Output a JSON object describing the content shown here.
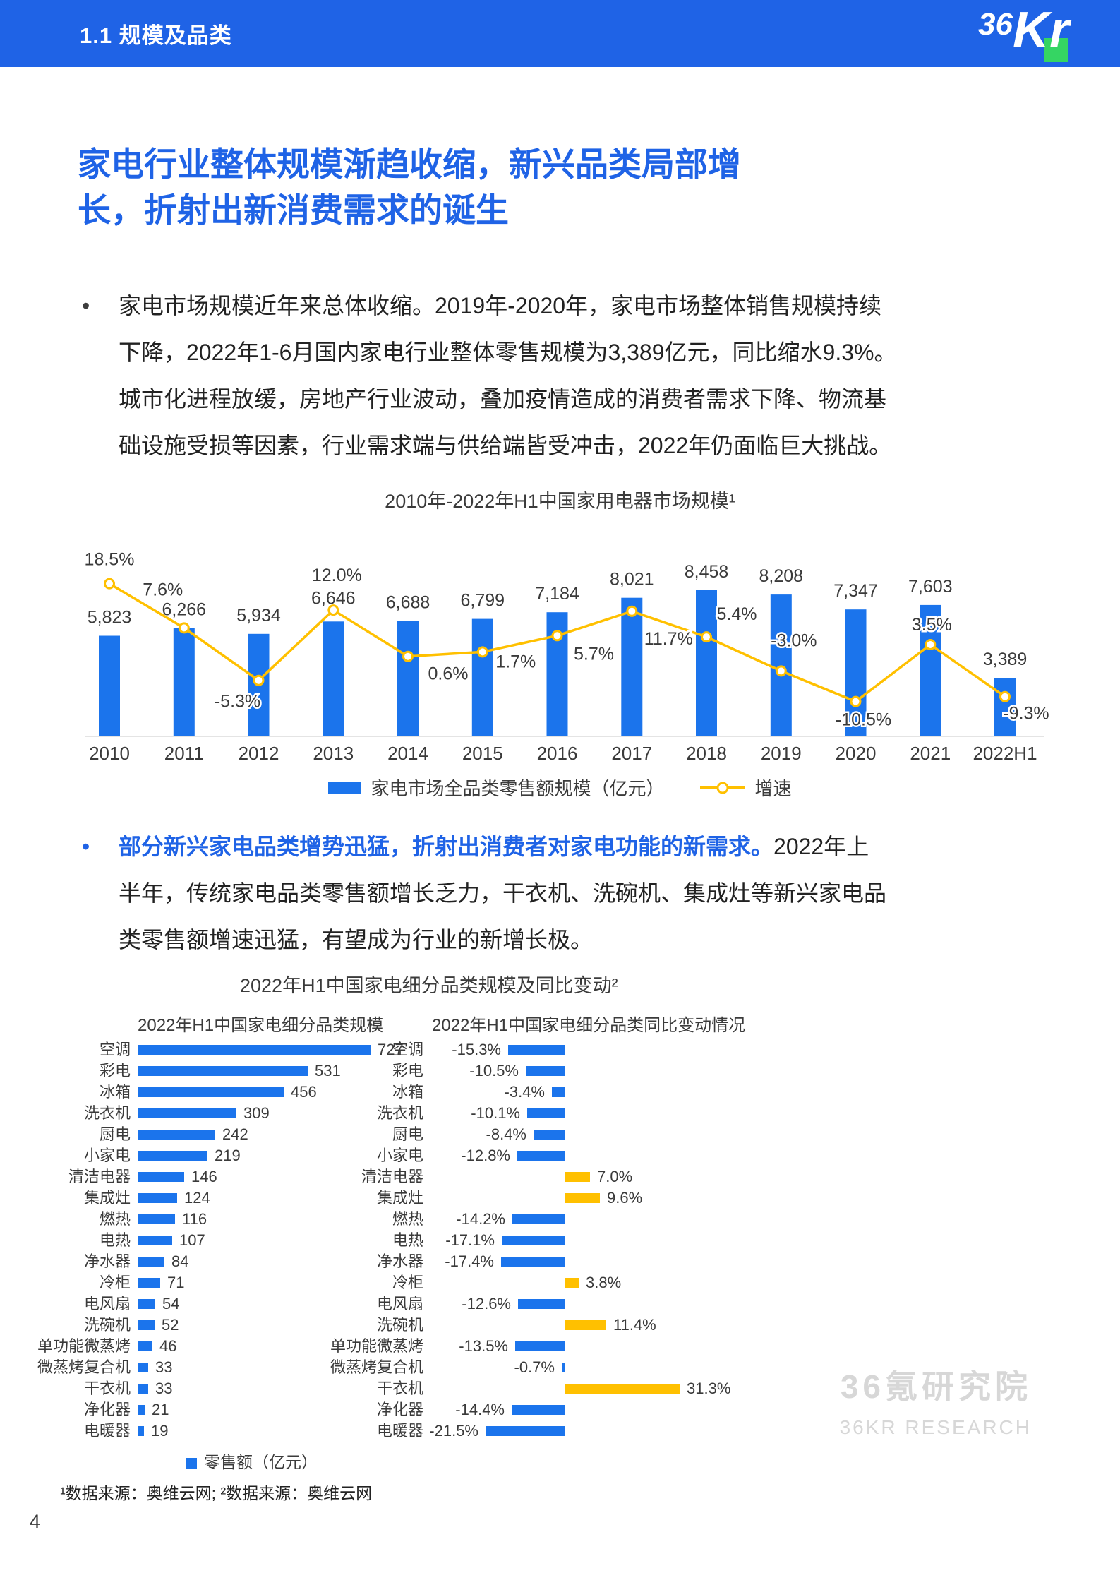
{
  "page": {
    "number": "4",
    "footnote": "¹数据来源：奥维云网; ²数据来源：奥维云网"
  },
  "header": {
    "section": "1.1 规模及品类",
    "logo": {
      "part1": "36",
      "part2": "Kr"
    }
  },
  "title": {
    "line1": "家电行业整体规模渐趋收缩，新兴品类局部增",
    "line2": "长，折射出新消费需求的诞生"
  },
  "paragraph1": {
    "bullet": "•",
    "lines": [
      "家电市场规模近年来总体收缩。2019年-2020年，家电市场整体销售规模持续",
      "下降，2022年1-6月国内家电行业整体零售规模为3,389亿元，同比缩水9.3%。",
      "城市化进程放缓，房地产行业波动，叠加疫情造成的消费者需求下降、物流基",
      "础设施受损等因素，行业需求端与供给端皆受冲击，2022年仍面临巨大挑战。"
    ]
  },
  "paragraph2": {
    "bullet": "•",
    "line1_bold": "部分新兴家电品类增势迅猛，折射出消费者对家电功能的新需求。",
    "line1_rest": "2022年上",
    "lines": [
      "半年，传统家电品类零售额增长乏力，干衣机、洗碗机、集成灶等新兴家电品",
      "类零售额增速迅猛，有望成为行业的新增长极。"
    ]
  },
  "section2_title": "2022年H1中国家电细分品类规模及同比变动²",
  "watermark": {
    "cn": "36氪研究院",
    "en": "36KR RESEARCH"
  },
  "colors": {
    "accent_blue": "#1F63E6",
    "bar_blue": "#1B74EC",
    "line_yellow": "#FFC000",
    "bar_yellow": "#FFC000",
    "logo_green": "#35D563",
    "watermark_gray": "#D7D7D7"
  },
  "chart_data": [
    {
      "type": "bar",
      "subtype": "bar+line-combo",
      "title": "2010年-2022年H1中国家用电器市场规模¹",
      "categories": [
        "2010",
        "2011",
        "2012",
        "2013",
        "2014",
        "2015",
        "2016",
        "2017",
        "2018",
        "2019",
        "2020",
        "2021",
        "2022H1"
      ],
      "series": [
        {
          "name": "家电市场全品类零售额规模（亿元）",
          "type": "bar",
          "values": [
            5823,
            6266,
            5934,
            6646,
            6688,
            6799,
            7184,
            8021,
            8458,
            8208,
            7347,
            7603,
            3389
          ],
          "labels": [
            "5,823",
            "6,266",
            "5,934",
            "6,646",
            "6,688",
            "6,799",
            "7,184",
            "8,021",
            "8,458",
            "8,208",
            "7,347",
            "7,603",
            "3,389"
          ]
        },
        {
          "name": "增速",
          "type": "line",
          "unit": "%",
          "values": [
            18.5,
            7.6,
            -5.3,
            12.0,
            0.6,
            1.7,
            5.7,
            11.7,
            5.4,
            -3.0,
            -10.5,
            3.5,
            -9.3
          ],
          "labels": [
            "18.5%",
            "7.6%",
            "-5.3%",
            "12.0%",
            "0.6%",
            "1.7%",
            "5.7%",
            "11.7%",
            "5.4%",
            "-3.0%",
            "-10.5%",
            "3.5%",
            "-9.3%"
          ]
        }
      ],
      "ylim_bar": [
        0,
        9000
      ],
      "ylim_line_pct": [
        -12,
        20
      ],
      "grid": false,
      "legend_position": "bottom"
    },
    {
      "type": "bar",
      "orientation": "horizontal",
      "title": "2022年H1中国家电细分品类规模",
      "unit": "亿元",
      "legend": "零售额（亿元）",
      "categories": [
        "空调",
        "彩电",
        "冰箱",
        "洗衣机",
        "厨电",
        "小家电",
        "清洁电器",
        "集成灶",
        "燃热",
        "电热",
        "净水器",
        "冷柜",
        "电风扇",
        "洗碗机",
        "单功能微蒸烤",
        "微蒸烤复合机",
        "干衣机",
        "净化器",
        "电暖器"
      ],
      "values": [
        727,
        531,
        456,
        309,
        242,
        219,
        146,
        124,
        116,
        107,
        84,
        71,
        54,
        52,
        46,
        33,
        33,
        21,
        19
      ],
      "xlim": [
        0,
        800
      ]
    },
    {
      "type": "bar",
      "orientation": "horizontal-diverging",
      "title": "2022年H1中国家电细分品类同比变动情况",
      "unit": "%",
      "categories": [
        "空调",
        "彩电",
        "冰箱",
        "洗衣机",
        "厨电",
        "小家电",
        "清洁电器",
        "集成灶",
        "燃热",
        "电热",
        "净水器",
        "冷柜",
        "电风扇",
        "洗碗机",
        "单功能微蒸烤",
        "微蒸烤复合机",
        "干衣机",
        "净化器",
        "电暖器"
      ],
      "values": [
        -15.3,
        -10.5,
        -3.4,
        -10.1,
        -8.4,
        -12.8,
        7.0,
        9.6,
        -14.2,
        -17.1,
        -17.4,
        3.8,
        -12.6,
        11.4,
        -13.5,
        -0.7,
        31.3,
        -14.4,
        -21.5
      ],
      "labels": [
        "-15.3%",
        "-10.5%",
        "-3.4%",
        "-10.1%",
        "-8.4%",
        "-12.8%",
        "7.0%",
        "9.6%",
        "-14.2%",
        "-17.1%",
        "-17.4%",
        "3.8%",
        "-12.6%",
        "11.4%",
        "-13.5%",
        "-0.7%",
        "31.3%",
        "-14.4%",
        "-21.5%"
      ],
      "positive_color": "#FFC000",
      "negative_color": "#1B74EC",
      "xlim_pct": [
        -25,
        35
      ]
    }
  ]
}
